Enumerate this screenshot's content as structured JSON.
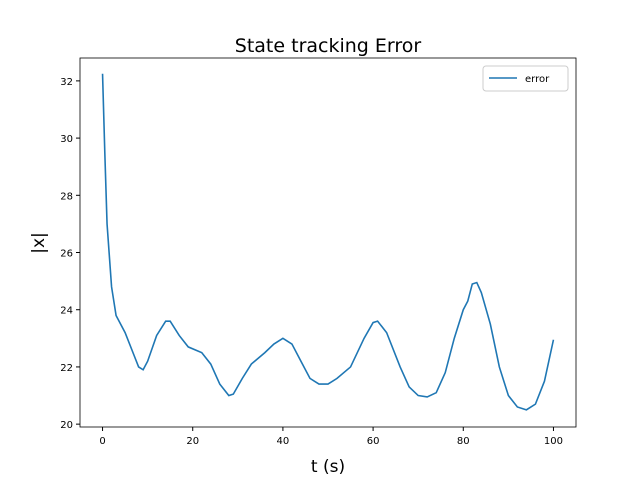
{
  "chart_data": {
    "type": "line",
    "title": "State tracking Error",
    "xlabel": "t (s)",
    "ylabel": "|x|",
    "x": [
      0,
      0.5,
      1,
      2,
      3,
      5,
      7,
      8,
      9,
      10,
      12,
      14,
      15,
      17,
      19,
      22,
      24,
      26,
      28,
      29,
      31,
      33,
      36,
      38,
      40,
      42,
      44,
      46,
      48,
      50,
      52,
      55,
      58,
      60,
      61,
      63,
      66,
      68,
      70,
      72,
      74,
      76,
      78,
      80,
      81,
      82,
      83,
      84,
      86,
      88,
      90,
      92,
      94,
      96,
      98,
      100
    ],
    "series": [
      {
        "name": "error",
        "color": "#1f77b4",
        "values": [
          32.25,
          29.5,
          27,
          24.8,
          23.8,
          23.2,
          22.4,
          22.0,
          21.9,
          22.2,
          23.1,
          23.6,
          23.6,
          23.1,
          22.7,
          22.5,
          22.1,
          21.4,
          21.0,
          21.05,
          21.6,
          22.1,
          22.5,
          22.8,
          23.0,
          22.8,
          22.2,
          21.6,
          21.4,
          21.4,
          21.6,
          22.0,
          23.0,
          23.55,
          23.6,
          23.2,
          22.0,
          21.3,
          21.0,
          20.95,
          21.1,
          21.8,
          23.0,
          24.0,
          24.3,
          24.9,
          24.95,
          24.6,
          23.5,
          22.0,
          21.0,
          20.6,
          20.5,
          20.7,
          21.5,
          22.95
        ]
      }
    ],
    "xlim": [
      -5,
      105
    ],
    "ylim": [
      19.9,
      32.8
    ],
    "xticks": [
      0,
      20,
      40,
      60,
      80,
      100
    ],
    "yticks": [
      20,
      22,
      24,
      26,
      28,
      30,
      32
    ],
    "legend": "upper right"
  }
}
